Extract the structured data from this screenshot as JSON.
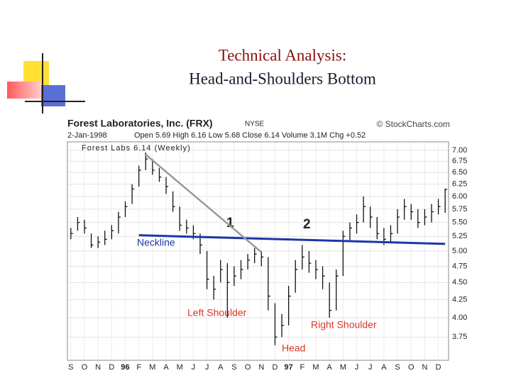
{
  "title": "Technical Analysis:",
  "subtitle": "Head-and-Shoulders Bottom",
  "chart_data": {
    "type": "ohlc",
    "title": "Forest Laboratories, Inc. (FRX)",
    "exchange": "NYSE",
    "source": "© StockCharts.com",
    "date": "2-Jan-1998",
    "quote": "Open 5.69 High 6.16 Low 5.68 Close 6.14 Volume 3.1M Chg +0.52",
    "legend": "Forest Labs 6.14 (Weekly)",
    "log_scale": true,
    "grid": true,
    "color": "#111111",
    "ylim": [
      3.47,
      7.2
    ],
    "yticks": [
      {
        "value": 7,
        "label": "7.00"
      },
      {
        "value": 6.75,
        "label": "6.75"
      },
      {
        "value": 6.5,
        "label": "6.50"
      },
      {
        "value": 6.25,
        "label": "6.25"
      },
      {
        "value": 6,
        "label": "6.00"
      },
      {
        "value": 5.75,
        "label": "5.75"
      },
      {
        "value": 5.5,
        "label": "5.50"
      },
      {
        "value": 5.25,
        "label": "5.25"
      },
      {
        "value": 5,
        "label": "5.00"
      },
      {
        "value": 4.75,
        "label": "4.75"
      },
      {
        "value": 4.5,
        "label": "4.50"
      },
      {
        "value": 4.25,
        "label": "4.25"
      },
      {
        "value": 4,
        "label": "4.00"
      },
      {
        "value": 3.75,
        "label": "3.75"
      }
    ],
    "categories": [
      "S",
      null,
      "O",
      null,
      "N",
      null,
      "D",
      null,
      "96",
      null,
      "F",
      null,
      "M",
      null,
      "A",
      null,
      "M",
      null,
      "J",
      null,
      "J",
      null,
      "A",
      null,
      "S",
      null,
      "O",
      null,
      "N",
      null,
      "D",
      null,
      "97",
      null,
      "F",
      null,
      "M",
      null,
      "A",
      null,
      "M",
      null,
      "J",
      null,
      "J",
      null,
      "A",
      null,
      "S",
      null,
      "O",
      null,
      "N",
      null,
      "D",
      null
    ],
    "high": [
      5.4,
      5.6,
      5.55,
      5.3,
      5.25,
      5.35,
      5.45,
      5.7,
      5.9,
      6.25,
      6.65,
      6.95,
      6.8,
      6.6,
      6.4,
      6.1,
      5.8,
      5.55,
      5.45,
      5.3,
      5.0,
      4.6,
      4.85,
      4.8,
      4.75,
      4.85,
      4.95,
      5.05,
      5.0,
      4.9,
      4.2,
      4.05,
      4.45,
      4.85,
      5.1,
      5.0,
      4.85,
      4.75,
      4.5,
      4.7,
      5.35,
      5.5,
      5.65,
      6.0,
      5.8,
      5.6,
      5.4,
      5.45,
      5.75,
      5.95,
      5.85,
      5.75,
      5.75,
      5.85,
      5.95,
      6.16
    ],
    "low": [
      5.2,
      5.35,
      5.3,
      5.05,
      5.05,
      5.1,
      5.2,
      5.3,
      5.6,
      5.85,
      6.2,
      6.55,
      6.45,
      6.3,
      6.05,
      5.7,
      5.35,
      5.3,
      5.2,
      4.95,
      4.4,
      4.25,
      4.5,
      4.0,
      4.45,
      4.55,
      4.7,
      4.8,
      4.75,
      4.1,
      3.65,
      3.75,
      3.9,
      4.35,
      4.7,
      4.65,
      4.55,
      4.4,
      4.0,
      4.1,
      4.6,
      5.15,
      5.3,
      5.5,
      5.4,
      5.2,
      5.1,
      5.15,
      5.3,
      5.55,
      5.55,
      5.4,
      5.45,
      5.5,
      5.65,
      5.68
    ],
    "close": [
      5.3,
      5.5,
      5.4,
      5.1,
      5.15,
      5.2,
      5.35,
      5.6,
      5.8,
      6.15,
      6.55,
      6.8,
      6.55,
      6.4,
      6.2,
      5.8,
      5.45,
      5.4,
      5.3,
      5.1,
      4.55,
      4.4,
      4.7,
      4.5,
      4.6,
      4.7,
      4.85,
      4.95,
      4.9,
      4.3,
      3.75,
      3.9,
      4.3,
      4.7,
      4.9,
      4.8,
      4.7,
      4.6,
      4.1,
      4.6,
      5.25,
      5.4,
      5.5,
      5.8,
      5.6,
      5.3,
      5.2,
      5.3,
      5.6,
      5.8,
      5.7,
      5.5,
      5.6,
      5.7,
      5.8,
      6.14
    ],
    "lines": [
      {
        "name": "Neckline",
        "color": "#1d36a8",
        "x": [
          10,
          55
        ],
        "values": [
          5.27,
          5.12
        ]
      },
      {
        "color": "#999999",
        "x": [
          11,
          28
        ],
        "values": [
          6.9,
          4.98
        ]
      }
    ],
    "annotations": [
      "1",
      "2",
      "Left Shoulder",
      "Right Shoulder",
      "Head"
    ]
  }
}
